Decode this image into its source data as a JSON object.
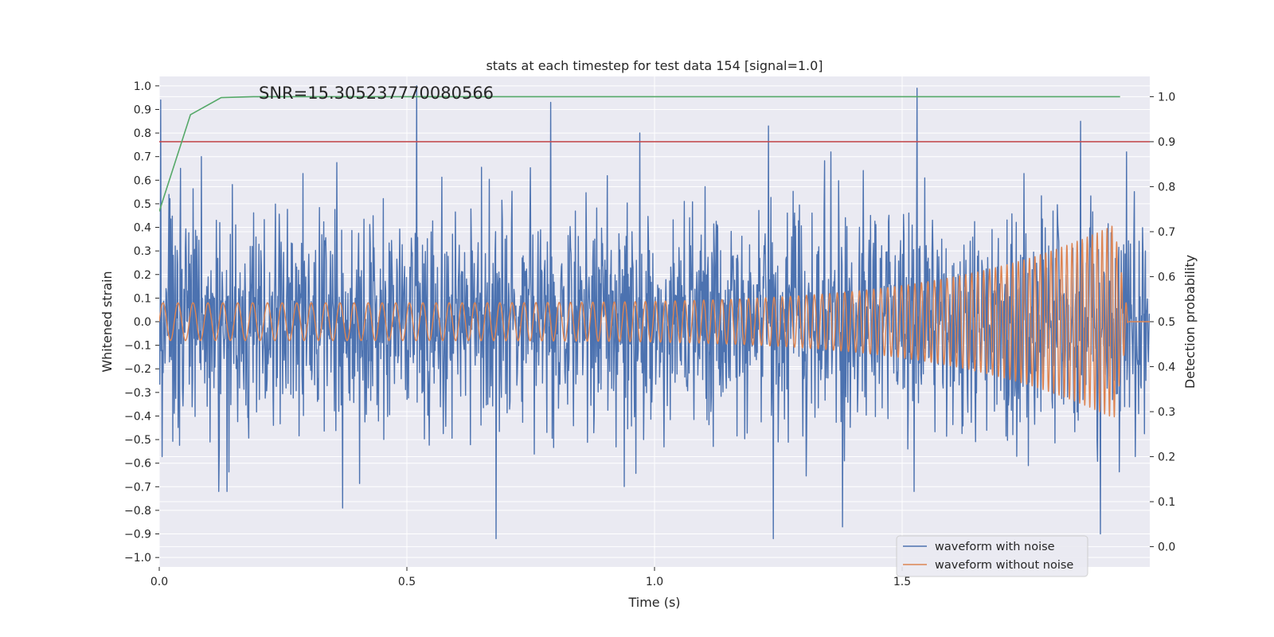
{
  "chart_data": {
    "type": "line",
    "title": "stats at each timestep for test data 154 [signal=1.0]",
    "xlabel": "Time (s)",
    "ylabel": "Whitened strain",
    "y2label": "Detection probability",
    "annotation": "SNR=15.305237770080566",
    "xlim": [
      0.0,
      2.0
    ],
    "ylim": [
      -1.04,
      1.04
    ],
    "y2lim": [
      -0.045,
      1.045
    ],
    "xticks": [
      0.0,
      0.5,
      1.0,
      1.5
    ],
    "xtick_labels": [
      "0.0",
      "0.5",
      "1.0",
      "1.5"
    ],
    "yticks": [
      -1.0,
      -0.9,
      -0.8,
      -0.7,
      -0.6,
      -0.5,
      -0.4,
      -0.3,
      -0.2,
      -0.1,
      0.0,
      0.1,
      0.2,
      0.3,
      0.4,
      0.5,
      0.6,
      0.7,
      0.8,
      0.9,
      1.0
    ],
    "ytick_labels": [
      "−1.0",
      "−0.9",
      "−0.8",
      "−0.7",
      "−0.6",
      "−0.5",
      "−0.4",
      "−0.3",
      "−0.2",
      "−0.1",
      "0.0",
      "0.1",
      "0.2",
      "0.3",
      "0.4",
      "0.5",
      "0.6",
      "0.7",
      "0.8",
      "0.9",
      "1.0"
    ],
    "y2ticks": [
      0.0,
      0.1,
      0.2,
      0.3,
      0.4,
      0.5,
      0.6,
      0.7,
      0.8,
      0.9,
      1.0
    ],
    "y2tick_labels": [
      "0.0",
      "0.1",
      "0.2",
      "0.3",
      "0.4",
      "0.5",
      "0.6",
      "0.7",
      "0.8",
      "0.9",
      "1.0"
    ],
    "grid": true,
    "legend_placement": "lower-right",
    "threshold_line": {
      "axis": "right",
      "value": 0.9,
      "color": "#c44e52"
    },
    "series": [
      {
        "name": "waveform with noise",
        "axis": "left",
        "color": "#4c72b0",
        "kind": "noise",
        "x_range": [
          0.0,
          2.0
        ],
        "extremes": [
          {
            "x": 0.003,
            "y": 0.94
          },
          {
            "x": 0.043,
            "y": 0.65
          },
          {
            "x": 0.085,
            "y": 0.7
          },
          {
            "x": 0.12,
            "y": -0.72
          },
          {
            "x": 0.37,
            "y": 0.83
          },
          {
            "x": 0.37,
            "y": -0.79
          },
          {
            "x": 0.52,
            "y": 1.0
          },
          {
            "x": 0.68,
            "y": -0.92
          },
          {
            "x": 0.79,
            "y": 0.93
          },
          {
            "x": 0.97,
            "y": 0.8
          },
          {
            "x": 1.23,
            "y": 0.83
          },
          {
            "x": 1.24,
            "y": -0.92
          },
          {
            "x": 1.38,
            "y": -0.87
          },
          {
            "x": 1.53,
            "y": 0.99
          },
          {
            "x": 1.86,
            "y": 0.85
          },
          {
            "x": 1.9,
            "y": -0.9
          }
        ]
      },
      {
        "name": "waveform without noise",
        "axis": "left",
        "color": "#dd8452",
        "kind": "chirp",
        "x_range": [
          0.0,
          2.0
        ],
        "amplitude_start": 0.08,
        "amplitude_peak": 0.44,
        "peak_amplitude_min": -0.45,
        "cycles_per_second_start": 33,
        "cycles_per_second_end": 105,
        "merger_time": 1.955,
        "post_merger_value": 0.0
      },
      {
        "name": "",
        "axis": "right",
        "color": "#55a868",
        "kind": "probability",
        "x": [
          0.0,
          0.063,
          0.125,
          0.19,
          0.25,
          1.94
        ],
        "values": [
          0.745,
          0.96,
          0.998,
          1.0,
          1.0,
          1.0
        ]
      }
    ]
  }
}
